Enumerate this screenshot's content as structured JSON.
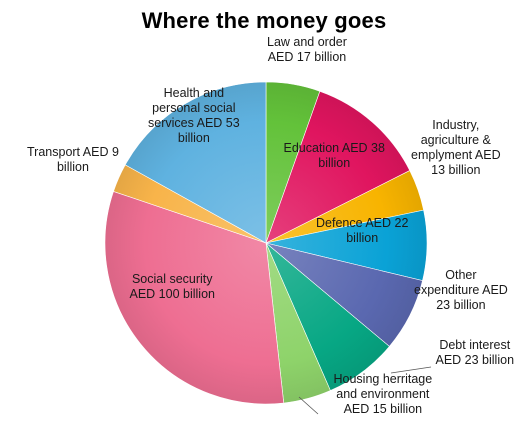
{
  "chart_data": {
    "type": "pie",
    "title": "Where the money goes",
    "unit": "AED billion",
    "slices": [
      {
        "label": "Law and order\nAED 17 billion",
        "value": 17,
        "color": "#63c23a"
      },
      {
        "label": "Education AED 38\nbillion",
        "value": 38,
        "color": "#e0155f"
      },
      {
        "label": "Industry,\nagriculture &\nemplyment AED\n13 billion",
        "value": 13,
        "color": "#f8b400"
      },
      {
        "label": "Defence AED 22\nbillion",
        "value": 22,
        "color": "#0aa2d6"
      },
      {
        "label": "Other\nexpenditure AED\n23 billion",
        "value": 23,
        "color": "#5a68b0"
      },
      {
        "label": "Debt interest\nAED 23 billion",
        "value": 23,
        "color": "#07a784"
      },
      {
        "label": "Housing herritage\nand environment\nAED 15 billion",
        "value": 15,
        "color": "#8ed36a"
      },
      {
        "label": "Social security\nAED 100 billion",
        "value": 100,
        "color": "#ee6e92"
      },
      {
        "label": "Transport AED 9\nbillion",
        "value": 9,
        "color": "#f8b44a"
      },
      {
        "label": "Health and\npersonal social\nservices AED 53\nbillion",
        "value": 53,
        "color": "#5fb2e0"
      }
    ]
  }
}
